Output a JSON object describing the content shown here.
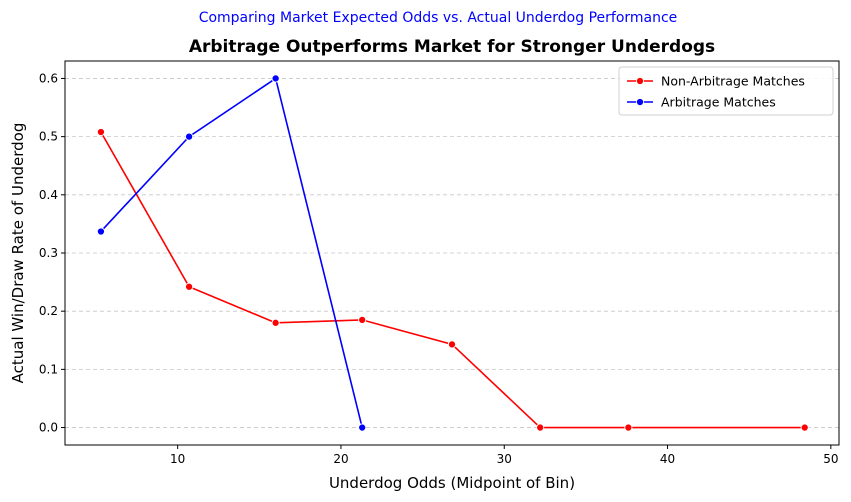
{
  "chart_data": {
    "type": "line",
    "suptitle": "Comparing Market Expected Odds vs. Actual Underdog Performance",
    "title": "Arbitrage Outperforms Market for Stronger Underdogs",
    "xlabel": "Underdog Odds (Midpoint of Bin)",
    "ylabel": "Actual Win/Draw Rate of Underdog",
    "xlim": [
      3.1,
      50.5
    ],
    "ylim": [
      -0.03,
      0.63
    ],
    "xticks": [
      10,
      20,
      30,
      40,
      50
    ],
    "yticks": [
      0.0,
      0.1,
      0.2,
      0.3,
      0.4,
      0.5,
      0.6
    ],
    "grid": "y-dashed",
    "legend_position": "top-right",
    "series": [
      {
        "name": "Non-Arbitrage Matches",
        "color": "#ff0000",
        "points": [
          {
            "x": 5.3,
            "y": 0.508
          },
          {
            "x": 10.7,
            "y": 0.242
          },
          {
            "x": 16.0,
            "y": 0.18
          },
          {
            "x": 21.3,
            "y": 0.185
          },
          {
            "x": 26.8,
            "y": 0.143
          },
          {
            "x": 32.2,
            "y": 0.0
          },
          {
            "x": 37.6,
            "y": 0.0
          },
          {
            "x": 48.4,
            "y": 0.0
          }
        ]
      },
      {
        "name": "Arbitrage Matches",
        "color": "#0000ff",
        "points": [
          {
            "x": 5.3,
            "y": 0.337
          },
          {
            "x": 10.7,
            "y": 0.5
          },
          {
            "x": 16.0,
            "y": 0.6
          },
          {
            "x": 21.3,
            "y": 0.0
          }
        ]
      }
    ]
  }
}
